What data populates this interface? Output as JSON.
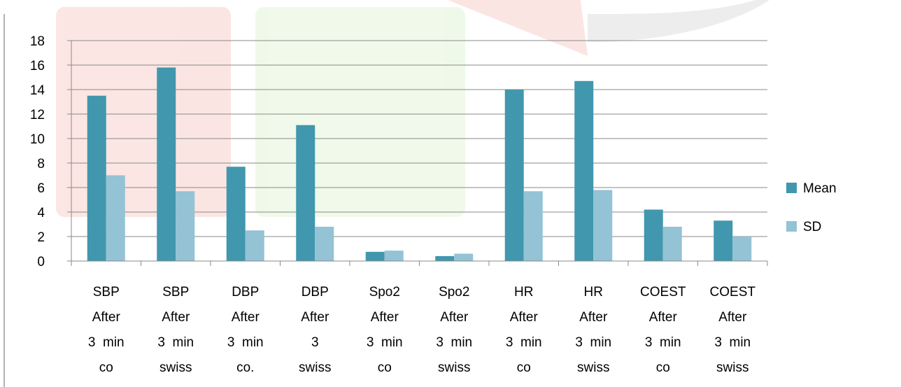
{
  "chart_data": {
    "type": "bar",
    "categories": [
      [
        "SBP",
        "After",
        "3  min",
        "co"
      ],
      [
        "SBP",
        "After",
        "3  min",
        "swiss"
      ],
      [
        "DBP",
        "After",
        "3  min",
        "co."
      ],
      [
        "DBP",
        "After",
        "3",
        "swiss"
      ],
      [
        "Spo2",
        "After",
        "3  min",
        "co"
      ],
      [
        "Spo2",
        "After",
        "3  min",
        "swiss"
      ],
      [
        "HR",
        "After",
        "3  min",
        "co"
      ],
      [
        "HR",
        "After",
        "3  min",
        "swiss"
      ],
      [
        "COEST",
        "After",
        "3  min",
        "co"
      ],
      [
        "COEST",
        "After",
        "3  min",
        "swiss"
      ]
    ],
    "series": [
      {
        "name": "Mean",
        "color": "#4197ae",
        "values": [
          13.5,
          15.8,
          7.7,
          11.1,
          0.75,
          0.4,
          14.0,
          14.7,
          4.2,
          3.3
        ]
      },
      {
        "name": "SD",
        "color": "#93c3d4",
        "values": [
          7.0,
          5.7,
          2.5,
          2.8,
          0.85,
          0.6,
          5.7,
          5.8,
          2.8,
          2.0
        ]
      }
    ],
    "ylim": [
      0,
      18
    ],
    "yticks": [
      0,
      2,
      4,
      6,
      8,
      10,
      12,
      14,
      16,
      18
    ],
    "grid": true,
    "legend_position": "right",
    "title": "",
    "xlabel": "",
    "ylabel": ""
  }
}
